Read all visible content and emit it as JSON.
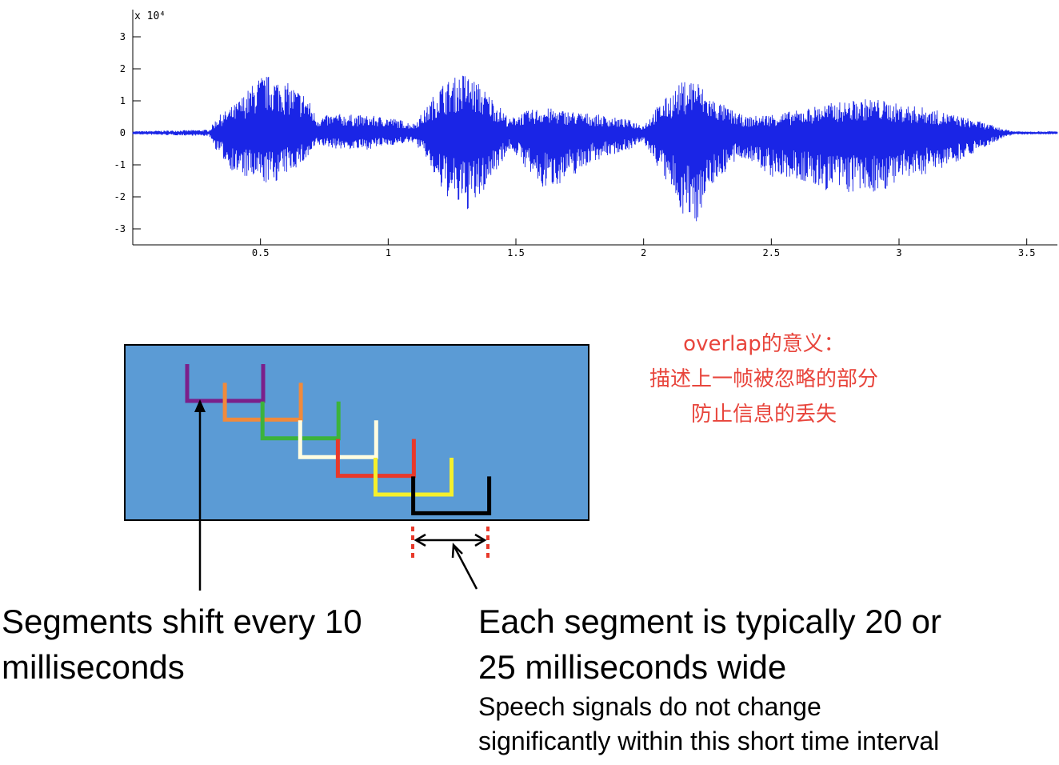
{
  "chart_data": {
    "type": "line",
    "title": "",
    "xlabel": "",
    "ylabel": "",
    "y_multiplier_label": "x 10⁴",
    "xlim": [
      0,
      3.62
    ],
    "ylim": [
      -3.3,
      3.3
    ],
    "x_ticks": [
      {
        "value": 0.5,
        "label": "0.5"
      },
      {
        "value": 1,
        "label": "1"
      },
      {
        "value": 1.5,
        "label": "1.5"
      },
      {
        "value": 2,
        "label": "2"
      },
      {
        "value": 2.5,
        "label": "2.5"
      },
      {
        "value": 3,
        "label": "3"
      },
      {
        "value": 3.5,
        "label": "3.5"
      }
    ],
    "y_ticks": [
      {
        "value": 3,
        "label": "3"
      },
      {
        "value": 2,
        "label": "2"
      },
      {
        "value": 1,
        "label": "1"
      },
      {
        "value": 0,
        "label": "0"
      },
      {
        "value": -1,
        "label": "-1"
      },
      {
        "value": -2,
        "label": "-2"
      },
      {
        "value": -3,
        "label": "-3"
      }
    ],
    "series": [
      {
        "color": "#1a25e6",
        "envelope": {
          "x": [
            0,
            0.3,
            0.33,
            0.4,
            0.5,
            0.55,
            0.62,
            0.68,
            0.72,
            0.8,
            0.9,
            1.0,
            1.1,
            1.15,
            1.2,
            1.3,
            1.35,
            1.42,
            1.48,
            1.5,
            1.6,
            1.7,
            1.8,
            1.95,
            2.0,
            2.05,
            2.15,
            2.2,
            2.25,
            2.35,
            2.4,
            2.5,
            2.6,
            2.7,
            2.8,
            2.9,
            3.0,
            3.1,
            3.2,
            3.3,
            3.4,
            3.45,
            3.62
          ],
          "upper": [
            0.05,
            0.1,
            0.5,
            0.9,
            1.8,
            1.8,
            1.5,
            1.2,
            0.5,
            0.6,
            0.55,
            0.5,
            0.3,
            0.8,
            1.5,
            1.9,
            1.6,
            1.0,
            0.4,
            0.6,
            0.8,
            0.7,
            0.6,
            0.4,
            0.25,
            0.8,
            1.6,
            1.8,
            1.2,
            0.7,
            0.5,
            0.6,
            0.7,
            0.9,
            1.0,
            1.1,
            0.9,
            0.8,
            0.6,
            0.4,
            0.15,
            0.05,
            0.05
          ],
          "lower": [
            -0.05,
            -0.1,
            -0.6,
            -1.3,
            -1.6,
            -1.6,
            -1.2,
            -0.9,
            -0.4,
            -0.5,
            -0.55,
            -0.4,
            -0.3,
            -0.8,
            -1.8,
            -2.5,
            -2.2,
            -1.2,
            -0.5,
            -0.7,
            -1.8,
            -1.5,
            -0.9,
            -0.5,
            -0.3,
            -1.0,
            -2.5,
            -3.0,
            -1.8,
            -1.0,
            -0.8,
            -1.4,
            -1.5,
            -1.8,
            -1.9,
            -1.9,
            -1.6,
            -1.3,
            -1.0,
            -0.6,
            -0.2,
            -0.05,
            -0.05
          ]
        }
      }
    ]
  },
  "diagram": {
    "background_color": "#5b9bd5",
    "segments": [
      {
        "color": "#7b1f8a"
      },
      {
        "color": "#f08a3c"
      },
      {
        "color": "#3cb33c"
      },
      {
        "color": "#fffde0"
      },
      {
        "color": "#e8392a"
      },
      {
        "color": "#f5f02c"
      },
      {
        "color": "#000000"
      }
    ],
    "marker_color": "#e8392a"
  },
  "note": {
    "line1": "overlap的意义：",
    "line2": "描述上一帧被忽略的部分",
    "line3": "防止信息的丢失"
  },
  "captions": {
    "shift_line1": "Segments shift every 10",
    "shift_line2": "milliseconds",
    "width_line1": "Each segment is typically 20 or",
    "width_line2": "25 milliseconds wide",
    "detail_line1": "Speech signals do not change",
    "detail_line2": "significantly within this short time interval"
  }
}
